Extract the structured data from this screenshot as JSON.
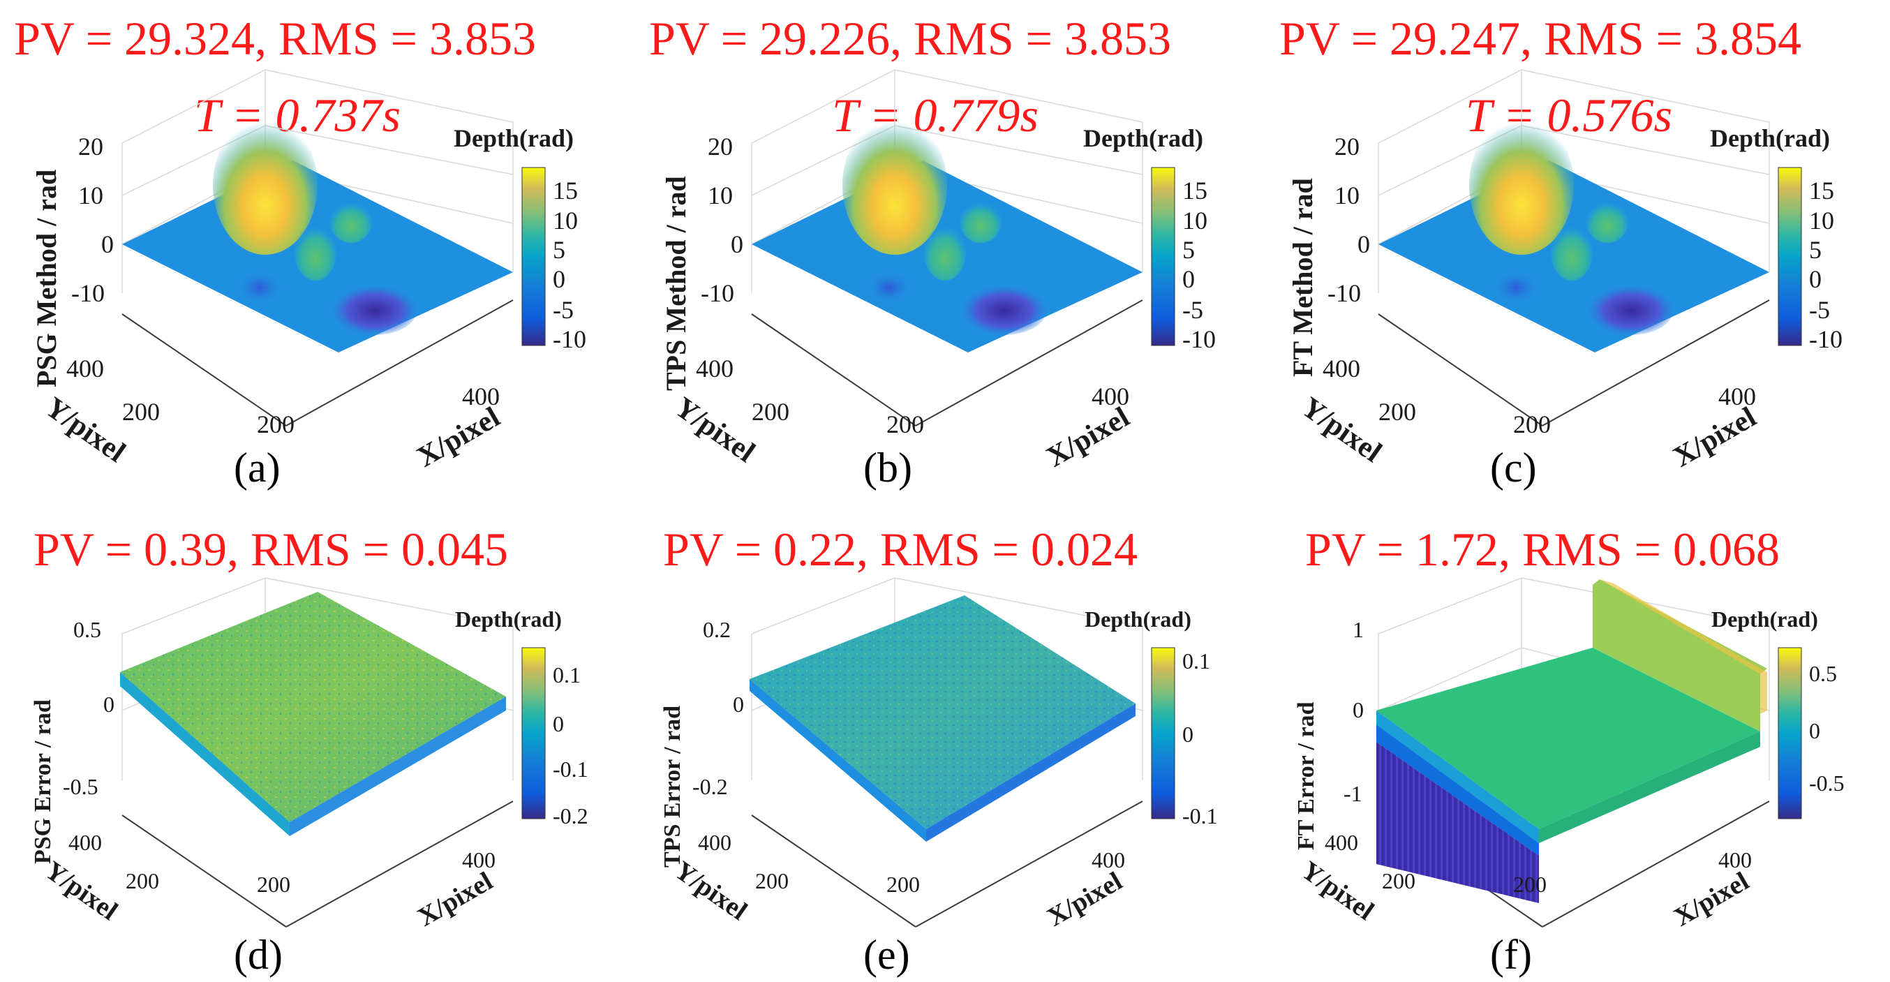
{
  "colors": {
    "title_red": "#ff1a1a",
    "surface_base": "#1f8fe0",
    "peak_yellow": "#f7d536",
    "valley_purple": "#3d2fa8",
    "error_green": "#2ec27e"
  },
  "chart_data": [
    {
      "type": "surface3d",
      "panel": "(a)",
      "title": "PV = 29.324, RMS = 3.853",
      "time_label": "T = 0.737s",
      "zlabel": "PSG  Method / rad",
      "xlabel": "X/pixel",
      "ylabel": "Y/pixel",
      "z_ticks": [
        "20",
        "10",
        "0",
        "-10"
      ],
      "x_ticks": [
        "200",
        "400"
      ],
      "y_ticks": [
        "400",
        "200"
      ],
      "colorbar_title": "Depth(rad)",
      "colorbar_ticks": [
        "15",
        "10",
        "5",
        "0",
        "-5",
        "-10"
      ],
      "pv": 29.324,
      "rms": 3.853,
      "time_s": 0.737,
      "clim": [
        -10,
        18
      ]
    },
    {
      "type": "surface3d",
      "panel": "(b)",
      "title": "PV = 29.226, RMS = 3.853",
      "time_label": "T = 0.779s",
      "zlabel": "TPS  Method / rad",
      "xlabel": "X/pixel",
      "ylabel": "Y/pixel",
      "z_ticks": [
        "20",
        "10",
        "0",
        "-10"
      ],
      "x_ticks": [
        "200",
        "400"
      ],
      "y_ticks": [
        "400",
        "200"
      ],
      "colorbar_title": "Depth(rad)",
      "colorbar_ticks": [
        "15",
        "10",
        "5",
        "0",
        "-5",
        "-10"
      ],
      "pv": 29.226,
      "rms": 3.853,
      "time_s": 0.779,
      "clim": [
        -10,
        18
      ]
    },
    {
      "type": "surface3d",
      "panel": "(c)",
      "title": "PV = 29.247, RMS = 3.854",
      "time_label": "T = 0.576s",
      "zlabel": "FT  Method / rad",
      "xlabel": "X/pixel",
      "ylabel": "Y/pixel",
      "z_ticks": [
        "20",
        "10",
        "0",
        "-10"
      ],
      "x_ticks": [
        "200",
        "400"
      ],
      "y_ticks": [
        "400",
        "200"
      ],
      "colorbar_title": "Depth(rad)",
      "colorbar_ticks": [
        "15",
        "10",
        "5",
        "0",
        "-5",
        "-10"
      ],
      "pv": 29.247,
      "rms": 3.854,
      "time_s": 0.576,
      "clim": [
        -10,
        18
      ]
    },
    {
      "type": "surface3d",
      "panel": "(d)",
      "title": "PV = 0.39, RMS = 0.045",
      "zlabel": "PSG Error / rad",
      "xlabel": "X/pixel",
      "ylabel": "Y/pixel",
      "z_ticks": [
        "0.5",
        "0",
        "-0.5"
      ],
      "x_ticks": [
        "200",
        "400"
      ],
      "y_ticks": [
        "400",
        "200"
      ],
      "colorbar_title": "Depth(rad)",
      "colorbar_ticks": [
        "0.1",
        "0",
        "-0.1",
        "-0.2"
      ],
      "pv": 0.39,
      "rms": 0.045,
      "clim": [
        -0.2,
        0.15
      ]
    },
    {
      "type": "surface3d",
      "panel": "(e)",
      "title": "PV = 0.22, RMS = 0.024",
      "zlabel": "TPS Error / rad",
      "xlabel": "X/pixel",
      "ylabel": "Y/pixel",
      "z_ticks": [
        "0.2",
        "0",
        "-0.2"
      ],
      "x_ticks": [
        "200",
        "400"
      ],
      "y_ticks": [
        "400",
        "200"
      ],
      "colorbar_title": "Depth(rad)",
      "colorbar_ticks": [
        "0.1",
        "0",
        "-0.1"
      ],
      "pv": 0.22,
      "rms": 0.024,
      "clim": [
        -0.1,
        0.12
      ]
    },
    {
      "type": "surface3d",
      "panel": "(f)",
      "title": "PV = 1.72, RMS = 0.068",
      "zlabel": "FT Error / rad",
      "xlabel": "X/pixel",
      "ylabel": "Y/pixel",
      "z_ticks": [
        "1",
        "0",
        "-1"
      ],
      "x_ticks": [
        "200",
        "400"
      ],
      "y_ticks": [
        "400",
        "200"
      ],
      "colorbar_title": "Depth(rad)",
      "colorbar_ticks": [
        "0.5",
        "0",
        "-0.5"
      ],
      "pv": 1.72,
      "rms": 0.068,
      "clim": [
        -0.9,
        0.8
      ]
    }
  ]
}
